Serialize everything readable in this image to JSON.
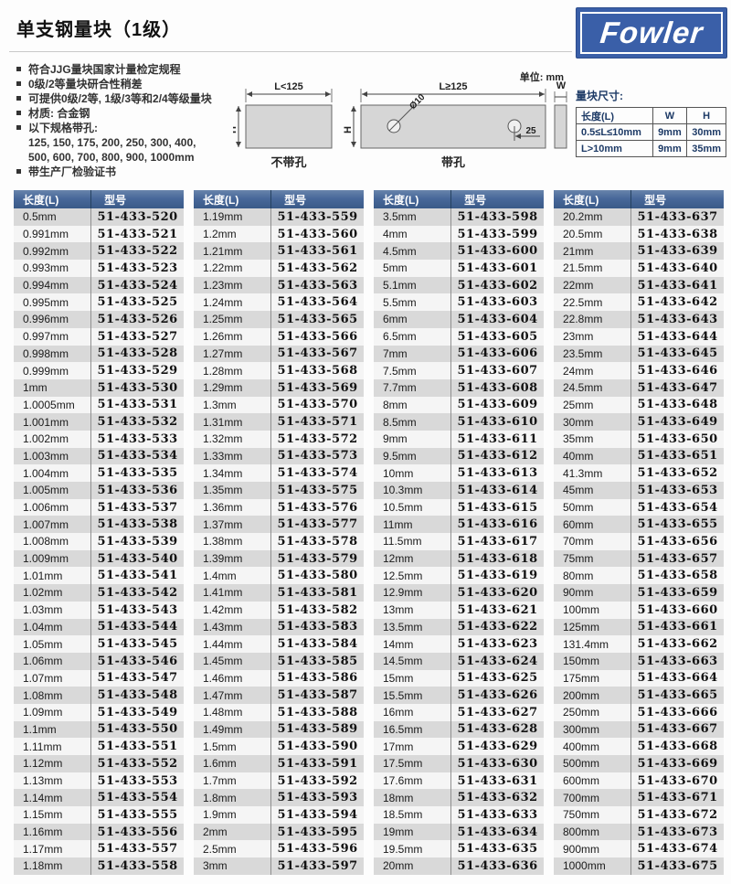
{
  "page": {
    "title": "单支钢量块（1级）",
    "logo_text": "Fowler",
    "unit_label": "单位: mm"
  },
  "features": [
    {
      "text": "符合JJG量块国家计量检定规程",
      "sublines": []
    },
    {
      "text": "0级/2等量块研合性稍差",
      "sublines": []
    },
    {
      "text": "可提供0级/2等, 1级/3等和2/4等级量块",
      "sublines": []
    },
    {
      "text": "材质: 合金钢",
      "sublines": []
    },
    {
      "text": "以下规格带孔:",
      "sublines": [
        "125, 150, 175, 200, 250, 300, 400,",
        "500, 600, 700, 800, 900, 1000mm"
      ]
    },
    {
      "text": "带生产厂检验证书",
      "sublines": []
    }
  ],
  "diagram": {
    "h_label": "H",
    "side_label": "W",
    "block_a": {
      "dim_top": "L<125",
      "caption": "不带孔"
    },
    "block_b": {
      "dim_top": "L≥125",
      "hole_label": "Ø10",
      "hole_offset": "25",
      "caption": "带孔"
    }
  },
  "dims_table": {
    "title": "量块尺寸:",
    "headers": [
      "长度(L)",
      "W",
      "H"
    ],
    "rows": [
      [
        "0.5≤L≤10mm",
        "9mm",
        "30mm"
      ],
      [
        "L>10mm",
        "9mm",
        "35mm"
      ]
    ]
  },
  "product_tables": {
    "headers": [
      "长度(L)",
      "型号"
    ],
    "columns": [
      [
        [
          "0.5mm",
          "51-433-520"
        ],
        [
          "0.991mm",
          "51-433-521"
        ],
        [
          "0.992mm",
          "51-433-522"
        ],
        [
          "0.993mm",
          "51-433-523"
        ],
        [
          "0.994mm",
          "51-433-524"
        ],
        [
          "0.995mm",
          "51-433-525"
        ],
        [
          "0.996mm",
          "51-433-526"
        ],
        [
          "0.997mm",
          "51-433-527"
        ],
        [
          "0.998mm",
          "51-433-528"
        ],
        [
          "0.999mm",
          "51-433-529"
        ],
        [
          "1mm",
          "51-433-530"
        ],
        [
          "1.0005mm",
          "51-433-531"
        ],
        [
          "1.001mm",
          "51-433-532"
        ],
        [
          "1.002mm",
          "51-433-533"
        ],
        [
          "1.003mm",
          "51-433-534"
        ],
        [
          "1.004mm",
          "51-433-535"
        ],
        [
          "1.005mm",
          "51-433-536"
        ],
        [
          "1.006mm",
          "51-433-537"
        ],
        [
          "1.007mm",
          "51-433-538"
        ],
        [
          "1.008mm",
          "51-433-539"
        ],
        [
          "1.009mm",
          "51-433-540"
        ],
        [
          "1.01mm",
          "51-433-541"
        ],
        [
          "1.02mm",
          "51-433-542"
        ],
        [
          "1.03mm",
          "51-433-543"
        ],
        [
          "1.04mm",
          "51-433-544"
        ],
        [
          "1.05mm",
          "51-433-545"
        ],
        [
          "1.06mm",
          "51-433-546"
        ],
        [
          "1.07mm",
          "51-433-547"
        ],
        [
          "1.08mm",
          "51-433-548"
        ],
        [
          "1.09mm",
          "51-433-549"
        ],
        [
          "1.1mm",
          "51-433-550"
        ],
        [
          "1.11mm",
          "51-433-551"
        ],
        [
          "1.12mm",
          "51-433-552"
        ],
        [
          "1.13mm",
          "51-433-553"
        ],
        [
          "1.14mm",
          "51-433-554"
        ],
        [
          "1.15mm",
          "51-433-555"
        ],
        [
          "1.16mm",
          "51-433-556"
        ],
        [
          "1.17mm",
          "51-433-557"
        ],
        [
          "1.18mm",
          "51-433-558"
        ]
      ],
      [
        [
          "1.19mm",
          "51-433-559"
        ],
        [
          "1.2mm",
          "51-433-560"
        ],
        [
          "1.21mm",
          "51-433-561"
        ],
        [
          "1.22mm",
          "51-433-562"
        ],
        [
          "1.23mm",
          "51-433-563"
        ],
        [
          "1.24mm",
          "51-433-564"
        ],
        [
          "1.25mm",
          "51-433-565"
        ],
        [
          "1.26mm",
          "51-433-566"
        ],
        [
          "1.27mm",
          "51-433-567"
        ],
        [
          "1.28mm",
          "51-433-568"
        ],
        [
          "1.29mm",
          "51-433-569"
        ],
        [
          "1.3mm",
          "51-433-570"
        ],
        [
          "1.31mm",
          "51-433-571"
        ],
        [
          "1.32mm",
          "51-433-572"
        ],
        [
          "1.33mm",
          "51-433-573"
        ],
        [
          "1.34mm",
          "51-433-574"
        ],
        [
          "1.35mm",
          "51-433-575"
        ],
        [
          "1.36mm",
          "51-433-576"
        ],
        [
          "1.37mm",
          "51-433-577"
        ],
        [
          "1.38mm",
          "51-433-578"
        ],
        [
          "1.39mm",
          "51-433-579"
        ],
        [
          "1.4mm",
          "51-433-580"
        ],
        [
          "1.41mm",
          "51-433-581"
        ],
        [
          "1.42mm",
          "51-433-582"
        ],
        [
          "1.43mm",
          "51-433-583"
        ],
        [
          "1.44mm",
          "51-433-584"
        ],
        [
          "1.45mm",
          "51-433-585"
        ],
        [
          "1.46mm",
          "51-433-586"
        ],
        [
          "1.47mm",
          "51-433-587"
        ],
        [
          "1.48mm",
          "51-433-588"
        ],
        [
          "1.49mm",
          "51-433-589"
        ],
        [
          "1.5mm",
          "51-433-590"
        ],
        [
          "1.6mm",
          "51-433-591"
        ],
        [
          "1.7mm",
          "51-433-592"
        ],
        [
          "1.8mm",
          "51-433-593"
        ],
        [
          "1.9mm",
          "51-433-594"
        ],
        [
          "2mm",
          "51-433-595"
        ],
        [
          "2.5mm",
          "51-433-596"
        ],
        [
          "3mm",
          "51-433-597"
        ]
      ],
      [
        [
          "3.5mm",
          "51-433-598"
        ],
        [
          "4mm",
          "51-433-599"
        ],
        [
          "4.5mm",
          "51-433-600"
        ],
        [
          "5mm",
          "51-433-601"
        ],
        [
          "5.1mm",
          "51-433-602"
        ],
        [
          "5.5mm",
          "51-433-603"
        ],
        [
          "6mm",
          "51-433-604"
        ],
        [
          "6.5mm",
          "51-433-605"
        ],
        [
          "7mm",
          "51-433-606"
        ],
        [
          "7.5mm",
          "51-433-607"
        ],
        [
          "7.7mm",
          "51-433-608"
        ],
        [
          "8mm",
          "51-433-609"
        ],
        [
          "8.5mm",
          "51-433-610"
        ],
        [
          "9mm",
          "51-433-611"
        ],
        [
          "9.5mm",
          "51-433-612"
        ],
        [
          "10mm",
          "51-433-613"
        ],
        [
          "10.3mm",
          "51-433-614"
        ],
        [
          "10.5mm",
          "51-433-615"
        ],
        [
          "11mm",
          "51-433-616"
        ],
        [
          "11.5mm",
          "51-433-617"
        ],
        [
          "12mm",
          "51-433-618"
        ],
        [
          "12.5mm",
          "51-433-619"
        ],
        [
          "12.9mm",
          "51-433-620"
        ],
        [
          "13mm",
          "51-433-621"
        ],
        [
          "13.5mm",
          "51-433-622"
        ],
        [
          "14mm",
          "51-433-623"
        ],
        [
          "14.5mm",
          "51-433-624"
        ],
        [
          "15mm",
          "51-433-625"
        ],
        [
          "15.5mm",
          "51-433-626"
        ],
        [
          "16mm",
          "51-433-627"
        ],
        [
          "16.5mm",
          "51-433-628"
        ],
        [
          "17mm",
          "51-433-629"
        ],
        [
          "17.5mm",
          "51-433-630"
        ],
        [
          "17.6mm",
          "51-433-631"
        ],
        [
          "18mm",
          "51-433-632"
        ],
        [
          "18.5mm",
          "51-433-633"
        ],
        [
          "19mm",
          "51-433-634"
        ],
        [
          "19.5mm",
          "51-433-635"
        ],
        [
          "20mm",
          "51-433-636"
        ]
      ],
      [
        [
          "20.2mm",
          "51-433-637"
        ],
        [
          "20.5mm",
          "51-433-638"
        ],
        [
          "21mm",
          "51-433-639"
        ],
        [
          "21.5mm",
          "51-433-640"
        ],
        [
          "22mm",
          "51-433-641"
        ],
        [
          "22.5mm",
          "51-433-642"
        ],
        [
          "22.8mm",
          "51-433-643"
        ],
        [
          "23mm",
          "51-433-644"
        ],
        [
          "23.5mm",
          "51-433-645"
        ],
        [
          "24mm",
          "51-433-646"
        ],
        [
          "24.5mm",
          "51-433-647"
        ],
        [
          "25mm",
          "51-433-648"
        ],
        [
          "30mm",
          "51-433-649"
        ],
        [
          "35mm",
          "51-433-650"
        ],
        [
          "40mm",
          "51-433-651"
        ],
        [
          "41.3mm",
          "51-433-652"
        ],
        [
          "45mm",
          "51-433-653"
        ],
        [
          "50mm",
          "51-433-654"
        ],
        [
          "60mm",
          "51-433-655"
        ],
        [
          "70mm",
          "51-433-656"
        ],
        [
          "75mm",
          "51-433-657"
        ],
        [
          "80mm",
          "51-433-658"
        ],
        [
          "90mm",
          "51-433-659"
        ],
        [
          "100mm",
          "51-433-660"
        ],
        [
          "125mm",
          "51-433-661"
        ],
        [
          "131.4mm",
          "51-433-662"
        ],
        [
          "150mm",
          "51-433-663"
        ],
        [
          "175mm",
          "51-433-664"
        ],
        [
          "200mm",
          "51-433-665"
        ],
        [
          "250mm",
          "51-433-666"
        ],
        [
          "300mm",
          "51-433-667"
        ],
        [
          "400mm",
          "51-433-668"
        ],
        [
          "500mm",
          "51-433-669"
        ],
        [
          "600mm",
          "51-433-670"
        ],
        [
          "700mm",
          "51-433-671"
        ],
        [
          "750mm",
          "51-433-672"
        ],
        [
          "800mm",
          "51-433-673"
        ],
        [
          "900mm",
          "51-433-674"
        ],
        [
          "1000mm",
          "51-433-675"
        ]
      ]
    ]
  }
}
